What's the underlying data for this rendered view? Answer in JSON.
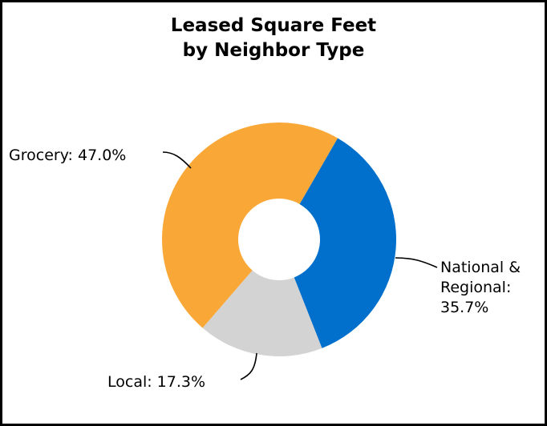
{
  "chart_data": {
    "type": "pie",
    "donut": true,
    "title_lines": [
      "Leased Square Feet",
      "by Neighbor Type"
    ],
    "slices": [
      {
        "name": "National & Regional",
        "value": 35.7,
        "label_lines": [
          "National &",
          "Regional:",
          "35.7%"
        ],
        "color": "#0070CC"
      },
      {
        "name": "Local",
        "value": 17.3,
        "label_lines": [
          "Local: 17.3%"
        ],
        "color": "#D3D3D3"
      },
      {
        "name": "Grocery",
        "value": 47.0,
        "label_lines": [
          "Grocery: 47.0%"
        ],
        "color": "#F9A837"
      }
    ],
    "legend": "none"
  }
}
